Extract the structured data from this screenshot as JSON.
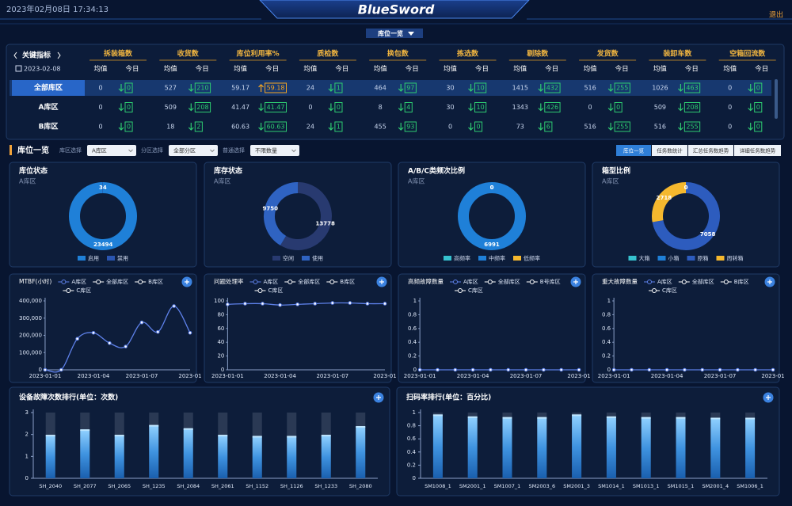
{
  "header": {
    "datetime": "2023年02月08日 17:34:13",
    "logo": "BlueSword",
    "logout": "退出",
    "tab": "库位一览"
  },
  "kpi": {
    "corner": "关键指标",
    "date": "2023-02-08",
    "sub_headers": [
      "均值",
      "今日"
    ],
    "selected_row": 0,
    "columns": [
      "拆装箱数",
      "收货数",
      "库位利用率%",
      "质检数",
      "换包数",
      "拣选数",
      "剔除数",
      "发货数",
      "装卸车数",
      "空箱回流数"
    ],
    "rows": [
      {
        "name": "全部库区",
        "cells": [
          {
            "avg": 0,
            "today": 0,
            "trend": "down"
          },
          {
            "avg": 527,
            "today": 210,
            "trend": "down"
          },
          {
            "avg": 59.17,
            "today": 59.18,
            "trend": "up"
          },
          {
            "avg": 24,
            "today": 1,
            "trend": "down"
          },
          {
            "avg": 464,
            "today": 97,
            "trend": "down"
          },
          {
            "avg": 30,
            "today": 10,
            "trend": "down"
          },
          {
            "avg": 1415,
            "today": 432,
            "trend": "down"
          },
          {
            "avg": 516,
            "today": 255,
            "trend": "down"
          },
          {
            "avg": 1026,
            "today": 463,
            "trend": "down"
          },
          {
            "avg": 0,
            "today": 0,
            "trend": "down"
          }
        ]
      },
      {
        "name": "A库区",
        "cells": [
          {
            "avg": 0,
            "today": 0,
            "trend": "down"
          },
          {
            "avg": 509,
            "today": 208,
            "trend": "down"
          },
          {
            "avg": 41.47,
            "today": 41.47,
            "trend": "down"
          },
          {
            "avg": 0,
            "today": 0,
            "trend": "down"
          },
          {
            "avg": 8,
            "today": 4,
            "trend": "down"
          },
          {
            "avg": 30,
            "today": 10,
            "trend": "down"
          },
          {
            "avg": 1343,
            "today": 426,
            "trend": "down"
          },
          {
            "avg": 0,
            "today": 0,
            "trend": "down"
          },
          {
            "avg": 509,
            "today": 208,
            "trend": "down"
          },
          {
            "avg": 0,
            "today": 0,
            "trend": "down"
          }
        ]
      },
      {
        "name": "B库区",
        "cells": [
          {
            "avg": 0,
            "today": 0,
            "trend": "down"
          },
          {
            "avg": 18,
            "today": 2,
            "trend": "down"
          },
          {
            "avg": 60.63,
            "today": 60.63,
            "trend": "down"
          },
          {
            "avg": 24,
            "today": 1,
            "trend": "down"
          },
          {
            "avg": 455,
            "today": 93,
            "trend": "down"
          },
          {
            "avg": 0,
            "today": 0,
            "trend": "down"
          },
          {
            "avg": 73,
            "today": 6,
            "trend": "down"
          },
          {
            "avg": 516,
            "today": 255,
            "trend": "down"
          },
          {
            "avg": 516,
            "today": 255,
            "trend": "down"
          },
          {
            "avg": 0,
            "today": 0,
            "trend": "down"
          }
        ]
      }
    ]
  },
  "toolbar": {
    "title": "库位一览",
    "filters": [
      {
        "label": "库区选择",
        "value": "A库区"
      },
      {
        "label": "分区选择",
        "value": "全部分区"
      },
      {
        "label": "普通选择",
        "value": "不限数量"
      }
    ],
    "buttons": [
      "库位一览",
      "任务数统计",
      "汇总任务数趋势",
      "详细任务数趋势"
    ],
    "active_button": 0
  },
  "chart_data": [
    {
      "type": "pie",
      "title": "库位状态",
      "subtitle": "A库区",
      "categories": [
        "启用",
        "禁用"
      ],
      "values": [
        23494,
        34
      ],
      "colors": [
        "#1f80d8",
        "#2a55b0"
      ]
    },
    {
      "type": "pie",
      "title": "库存状态",
      "subtitle": "A库区",
      "categories": [
        "空闲",
        "使用"
      ],
      "values": [
        13778,
        9750
      ],
      "colors": [
        "#283a70",
        "#2f63c2"
      ]
    },
    {
      "type": "pie",
      "title": "A/B/C类频次比例",
      "subtitle": "A库区",
      "categories": [
        "高频率",
        "中频率",
        "低频率"
      ],
      "values": [
        0,
        6991,
        0
      ],
      "colors": [
        "#36c2cf",
        "#1f80d8",
        "#f5b82e"
      ]
    },
    {
      "type": "pie",
      "title": "箱型比例",
      "subtitle": "A库区",
      "categories": [
        "大箱",
        "小箱",
        "原箱",
        "周转箱"
      ],
      "values": [
        0,
        0,
        7058,
        2718
      ],
      "colors": [
        "#36c2cf",
        "#1f80d8",
        "#2d5cbe",
        "#f5b82e"
      ]
    },
    {
      "type": "line",
      "title": "MTBF(小时)",
      "x": [
        "2023-01-01",
        null,
        null,
        "2023-01-04",
        null,
        null,
        "2023-01-07",
        null,
        null,
        "2023-01"
      ],
      "series": [
        {
          "name": "A库区",
          "color": "#5d80e8",
          "values": [
            0,
            0,
            180000,
            215000,
            155000,
            135000,
            275000,
            220000,
            370000,
            215000
          ]
        },
        {
          "name": "全部库区",
          "color": "#ffffff",
          "values": [
            null,
            null,
            null,
            null,
            null,
            null,
            null,
            null,
            null,
            null
          ]
        },
        {
          "name": "B库区",
          "color": "#ffffff",
          "values": [
            null,
            null,
            null,
            null,
            null,
            null,
            null,
            null,
            null,
            null
          ]
        },
        {
          "name": "C库区",
          "color": "#ffffff",
          "values": [
            null,
            null,
            null,
            null,
            null,
            null,
            null,
            null,
            null,
            null
          ]
        }
      ],
      "ylim": [
        0,
        400000
      ],
      "yticks": [
        0,
        {
          "value": 100000,
          "label": "100,000"
        },
        {
          "value": 200000,
          "label": "200,000"
        },
        {
          "value": 300000,
          "label": "300,000"
        },
        {
          "value": 400000,
          "label": "400,000"
        }
      ]
    },
    {
      "type": "line",
      "title": "问题处理率",
      "x": [
        "2023-01-01",
        null,
        null,
        "2023-01-04",
        null,
        null,
        "2023-01-07",
        null,
        null,
        "2023-01"
      ],
      "series": [
        {
          "name": "A库区",
          "color": "#5d80e8",
          "values": [
            95,
            96,
            96,
            94,
            95,
            96,
            97,
            97,
            96,
            96
          ]
        },
        {
          "name": "全部库区",
          "color": "#ffffff",
          "values": [
            null,
            null,
            null,
            null,
            null,
            null,
            null,
            null,
            null,
            null
          ]
        },
        {
          "name": "B库区",
          "color": "#ffffff",
          "values": [
            null,
            null,
            null,
            null,
            null,
            null,
            null,
            null,
            null,
            null
          ]
        },
        {
          "name": "C库区",
          "color": "#ffffff",
          "values": [
            null,
            null,
            null,
            null,
            null,
            null,
            null,
            null,
            null,
            null
          ]
        }
      ],
      "ylim": [
        0,
        100
      ],
      "yticks": [
        0,
        20,
        40,
        60,
        80,
        100
      ]
    },
    {
      "type": "line",
      "title": "高频故障数量",
      "x": [
        "2023-01-01",
        null,
        null,
        "2023-01-04",
        null,
        null,
        "2023-01-07",
        null,
        null,
        "2023-01"
      ],
      "series": [
        {
          "name": "A库区",
          "color": "#5d80e8",
          "values": [
            0,
            0,
            0,
            0,
            0,
            0,
            0,
            0,
            0,
            0
          ]
        },
        {
          "name": "全部库区",
          "color": "#ffffff",
          "values": [
            null,
            null,
            null,
            null,
            null,
            null,
            null,
            null,
            null,
            null
          ]
        },
        {
          "name": "B号库区",
          "color": "#ffffff",
          "values": [
            null,
            null,
            null,
            null,
            null,
            null,
            null,
            null,
            null,
            null
          ]
        },
        {
          "name": "C库区",
          "color": "#ffffff",
          "values": [
            null,
            null,
            null,
            null,
            null,
            null,
            null,
            null,
            null,
            null
          ]
        }
      ],
      "ylim": [
        0,
        1
      ],
      "yticks": [
        0,
        0.2,
        0.4,
        0.6,
        0.8,
        1
      ]
    },
    {
      "type": "line",
      "title": "重大故障数量",
      "x": [
        "2023-01-01",
        null,
        null,
        "2023-01-04",
        null,
        null,
        "2023-01-07",
        null,
        null,
        "2023-01"
      ],
      "series": [
        {
          "name": "A库区",
          "color": "#5d80e8",
          "values": [
            0,
            0,
            0,
            0,
            0,
            0,
            0,
            0,
            0,
            0
          ]
        },
        {
          "name": "全部库区",
          "color": "#ffffff",
          "values": [
            null,
            null,
            null,
            null,
            null,
            null,
            null,
            null,
            null,
            null
          ]
        },
        {
          "name": "B库区",
          "color": "#ffffff",
          "values": [
            null,
            null,
            null,
            null,
            null,
            null,
            null,
            null,
            null,
            null
          ]
        },
        {
          "name": "C库区",
          "color": "#ffffff",
          "values": [
            null,
            null,
            null,
            null,
            null,
            null,
            null,
            null,
            null,
            null
          ]
        }
      ],
      "ylim": [
        0,
        1
      ],
      "yticks": [
        0,
        0.2,
        0.4,
        0.6,
        0.8,
        1
      ]
    },
    {
      "type": "bar",
      "title": "设备故障次数排行(单位：次数)",
      "categories": [
        "SH_2040",
        "SH_2077",
        "SH_2065",
        "SH_1235",
        "SH_2084",
        "SH_2061",
        "SH_1152",
        "SH_1126",
        "SH_1233",
        "SH_2080"
      ],
      "values": [
        1.95,
        2.2,
        1.95,
        2.4,
        2.25,
        1.95,
        1.9,
        1.9,
        1.95,
        2.35
      ],
      "color": "#3f93e0",
      "ylim": [
        0,
        3
      ],
      "yticks": [
        0,
        1,
        2,
        3
      ]
    },
    {
      "type": "bar",
      "title": "扫码率排行(单位：百分比)",
      "categories": [
        "SM1008_1",
        "SM2001_1",
        "SM1007_1",
        "SM2003_6",
        "SM2001_3",
        "SM1014_1",
        "SM1013_1",
        "SM1015_1",
        "SM2001_4",
        "SM1006_1"
      ],
      "values": [
        0.96,
        0.93,
        0.92,
        0.92,
        0.96,
        0.93,
        0.92,
        0.92,
        0.91,
        0.91
      ],
      "color": "#3f93e0",
      "ylim": [
        0,
        1
      ],
      "yticks": [
        0,
        0.2,
        0.4,
        0.6,
        0.8,
        1
      ]
    }
  ]
}
